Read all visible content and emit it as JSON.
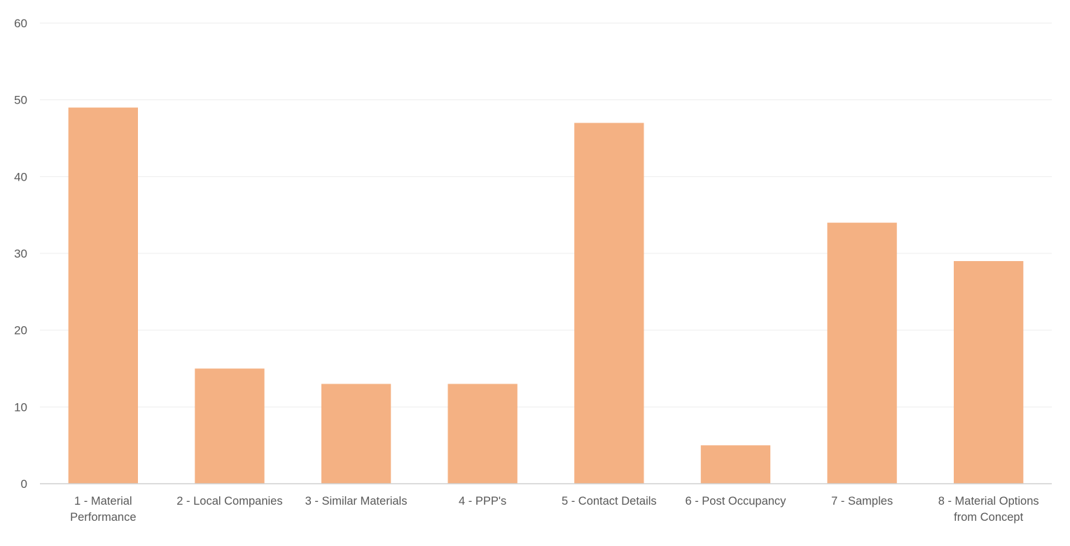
{
  "chart_data": {
    "type": "bar",
    "title": "",
    "xlabel": "",
    "ylabel": "",
    "categories": [
      [
        "1 - Material",
        "Performance"
      ],
      [
        "2 - Local Companies"
      ],
      [
        "3 - Similar Materials"
      ],
      [
        "4 - PPP's"
      ],
      [
        "5 - Contact Details"
      ],
      [
        "6 - Post Occupancy"
      ],
      [
        "7 - Samples"
      ],
      [
        "8 - Material Options",
        "from Concept"
      ]
    ],
    "values": [
      49,
      15,
      13,
      13,
      47,
      5,
      34,
      29
    ],
    "ylim": [
      0,
      60
    ],
    "yticks": [
      0,
      10,
      20,
      30,
      40,
      50,
      60
    ],
    "grid": true,
    "legend": "none",
    "bar_color": "#F4B183",
    "grid_color": "#EDEDED",
    "axis_color": "#D0D0D0",
    "text_color": "#595959"
  }
}
